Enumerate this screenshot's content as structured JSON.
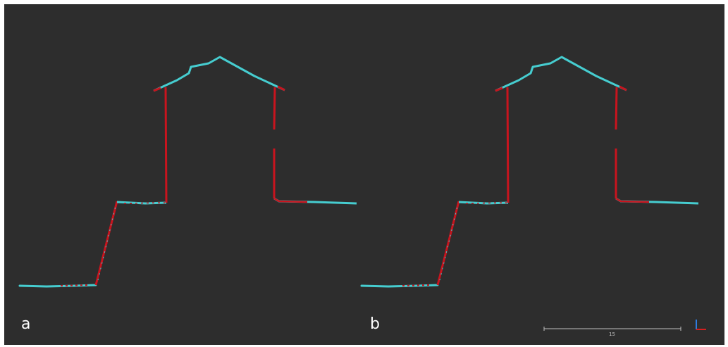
{
  "panels": [
    {
      "label": "a"
    },
    {
      "label": "b"
    }
  ],
  "scale_bar": {
    "value": "15"
  },
  "colors": {
    "background": "#2d2d2d",
    "cyan_points": "#46cdd0",
    "red_points": "#c8141e",
    "scale_bar": "#bfbfbf",
    "axis_blue": "#2f7de0",
    "axis_red": "#d42020"
  }
}
